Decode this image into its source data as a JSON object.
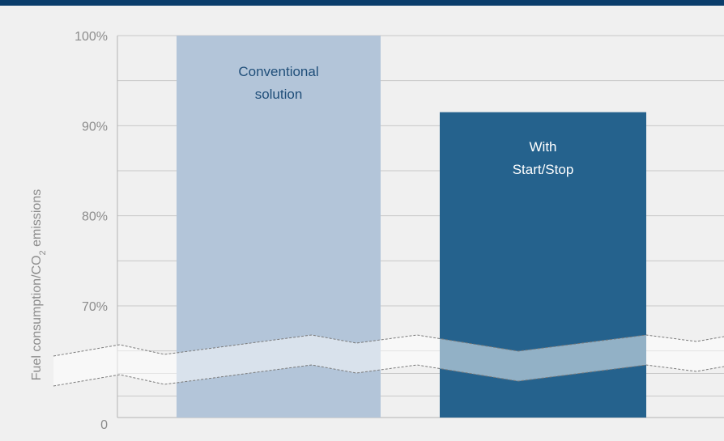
{
  "chart_data": {
    "type": "bar",
    "categories": [
      "Conventional solution",
      "With Start/Stop"
    ],
    "bar_label_lines": [
      [
        "Conventional",
        "solution"
      ],
      [
        "With",
        "Start/Stop"
      ]
    ],
    "values": [
      100,
      91.5
    ],
    "ylabel_main": "Fuel consumption/CO",
    "ylabel_sub": "2",
    "ylabel_tail": " emissions",
    "yticks": [
      {
        "value": 100,
        "label": "100%"
      },
      {
        "value": 90,
        "label": "90%"
      },
      {
        "value": 80,
        "label": "80%"
      },
      {
        "value": 70,
        "label": "70%"
      }
    ],
    "zero_label": "0",
    "ylim_visible": [
      66.5,
      100
    ],
    "axis_break": true,
    "grid": true,
    "legend": "none"
  },
  "colors": {
    "background": "#f0f0f0",
    "top_bar": "#0a3d6b",
    "gridline": "#c8c8c8",
    "axis": "#b4b4b4",
    "bar_conventional": "#b3c5d9",
    "bar_startstop": "#25628d",
    "label_conventional": "#1f4e79",
    "label_startstop": "#ffffff",
    "tick_text": "#8c8c8c"
  }
}
